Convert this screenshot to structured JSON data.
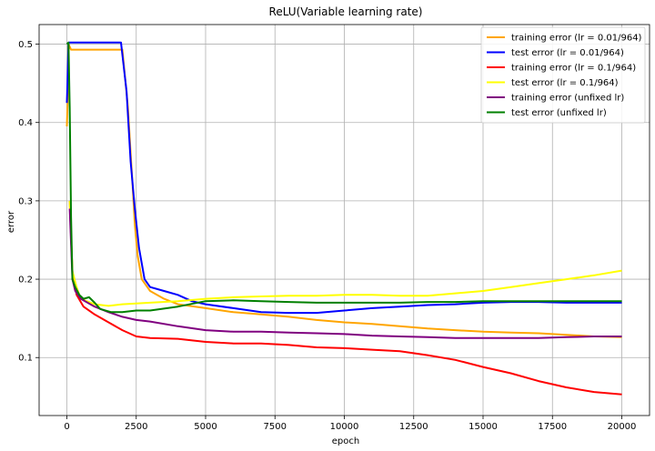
{
  "chart_data": {
    "type": "line",
    "title": "ReLU(Variable learning rate)",
    "xlabel": "epoch",
    "ylabel": "error",
    "xlim": [
      -1000,
      21000
    ],
    "ylim": [
      0.026,
      0.525
    ],
    "xticks": [
      0,
      2500,
      5000,
      7500,
      10000,
      12500,
      15000,
      17500,
      20000
    ],
    "yticks": [
      0.1,
      0.2,
      0.3,
      0.4,
      0.5
    ],
    "grid": true,
    "legend_position": "top-right",
    "series": [
      {
        "name": "training error (lr = 0.01/964)",
        "color": "#ffa500",
        "points": [
          [
            0,
            0.395
          ],
          [
            30,
            0.43
          ],
          [
            60,
            0.5
          ],
          [
            150,
            0.493
          ],
          [
            1000,
            0.493
          ],
          [
            2000,
            0.493
          ],
          [
            2200,
            0.42
          ],
          [
            2350,
            0.33
          ],
          [
            2450,
            0.27
          ],
          [
            2550,
            0.23
          ],
          [
            2700,
            0.2
          ],
          [
            3000,
            0.185
          ],
          [
            3500,
            0.175
          ],
          [
            4000,
            0.168
          ],
          [
            5000,
            0.163
          ],
          [
            6000,
            0.158
          ],
          [
            7000,
            0.155
          ],
          [
            8000,
            0.152
          ],
          [
            9000,
            0.148
          ],
          [
            10000,
            0.145
          ],
          [
            11000,
            0.143
          ],
          [
            12000,
            0.14
          ],
          [
            13000,
            0.137
          ],
          [
            14000,
            0.135
          ],
          [
            15000,
            0.133
          ],
          [
            16000,
            0.132
          ],
          [
            17000,
            0.131
          ],
          [
            18000,
            0.129
          ],
          [
            19000,
            0.127
          ],
          [
            20000,
            0.126
          ]
        ]
      },
      {
        "name": "test error (lr = 0.01/964)",
        "color": "#0000ff",
        "points": [
          [
            0,
            0.425
          ],
          [
            30,
            0.46
          ],
          [
            60,
            0.502
          ],
          [
            1000,
            0.502
          ],
          [
            1950,
            0.502
          ],
          [
            2150,
            0.44
          ],
          [
            2300,
            0.35
          ],
          [
            2450,
            0.29
          ],
          [
            2600,
            0.24
          ],
          [
            2800,
            0.2
          ],
          [
            3000,
            0.19
          ],
          [
            3500,
            0.185
          ],
          [
            4000,
            0.18
          ],
          [
            4500,
            0.172
          ],
          [
            5000,
            0.168
          ],
          [
            6000,
            0.163
          ],
          [
            7000,
            0.158
          ],
          [
            8000,
            0.157
          ],
          [
            9000,
            0.157
          ],
          [
            10000,
            0.16
          ],
          [
            11000,
            0.163
          ],
          [
            12000,
            0.165
          ],
          [
            13000,
            0.167
          ],
          [
            14000,
            0.168
          ],
          [
            15000,
            0.17
          ],
          [
            16000,
            0.171
          ],
          [
            17000,
            0.171
          ],
          [
            18000,
            0.17
          ],
          [
            19000,
            0.17
          ],
          [
            20000,
            0.17
          ]
        ]
      },
      {
        "name": "training error (lr = 0.1/964)",
        "color": "#ff0000",
        "points": [
          [
            100,
            0.3
          ],
          [
            200,
            0.21
          ],
          [
            350,
            0.18
          ],
          [
            600,
            0.165
          ],
          [
            1000,
            0.155
          ],
          [
            1500,
            0.145
          ],
          [
            2000,
            0.135
          ],
          [
            2500,
            0.127
          ],
          [
            3000,
            0.125
          ],
          [
            4000,
            0.124
          ],
          [
            5000,
            0.12
          ],
          [
            6000,
            0.118
          ],
          [
            7000,
            0.118
          ],
          [
            8000,
            0.116
          ],
          [
            9000,
            0.113
          ],
          [
            10000,
            0.112
          ],
          [
            11000,
            0.11
          ],
          [
            12000,
            0.108
          ],
          [
            13000,
            0.103
          ],
          [
            14000,
            0.097
          ],
          [
            15000,
            0.088
          ],
          [
            16000,
            0.08
          ],
          [
            17000,
            0.07
          ],
          [
            18000,
            0.062
          ],
          [
            19000,
            0.056
          ],
          [
            20000,
            0.053
          ]
        ]
      },
      {
        "name": "test error (lr = 0.1/964)",
        "color": "#ffff00",
        "points": [
          [
            100,
            0.3
          ],
          [
            200,
            0.21
          ],
          [
            350,
            0.19
          ],
          [
            500,
            0.175
          ],
          [
            1000,
            0.168
          ],
          [
            1500,
            0.166
          ],
          [
            2000,
            0.168
          ],
          [
            3000,
            0.17
          ],
          [
            4000,
            0.172
          ],
          [
            5000,
            0.175
          ],
          [
            6000,
            0.177
          ],
          [
            7000,
            0.178
          ],
          [
            8000,
            0.179
          ],
          [
            9000,
            0.179
          ],
          [
            10000,
            0.18
          ],
          [
            11000,
            0.18
          ],
          [
            12000,
            0.179
          ],
          [
            13000,
            0.179
          ],
          [
            14000,
            0.182
          ],
          [
            15000,
            0.185
          ],
          [
            16000,
            0.19
          ],
          [
            17000,
            0.195
          ],
          [
            18000,
            0.2
          ],
          [
            19000,
            0.205
          ],
          [
            20000,
            0.211
          ]
        ]
      },
      {
        "name": "training error (unfixed lr)",
        "color": "#800080",
        "points": [
          [
            100,
            0.29
          ],
          [
            200,
            0.2
          ],
          [
            300,
            0.185
          ],
          [
            500,
            0.175
          ],
          [
            1000,
            0.165
          ],
          [
            1500,
            0.158
          ],
          [
            2000,
            0.152
          ],
          [
            2500,
            0.148
          ],
          [
            3000,
            0.146
          ],
          [
            4000,
            0.14
          ],
          [
            5000,
            0.135
          ],
          [
            6000,
            0.133
          ],
          [
            7000,
            0.133
          ],
          [
            8000,
            0.132
          ],
          [
            9000,
            0.131
          ],
          [
            10000,
            0.13
          ],
          [
            11000,
            0.128
          ],
          [
            12000,
            0.127
          ],
          [
            13000,
            0.126
          ],
          [
            14000,
            0.125
          ],
          [
            15000,
            0.125
          ],
          [
            16000,
            0.125
          ],
          [
            17000,
            0.125
          ],
          [
            18000,
            0.126
          ],
          [
            19000,
            0.127
          ],
          [
            20000,
            0.127
          ]
        ]
      },
      {
        "name": "test error (unfixed lr)",
        "color": "#008000",
        "points": [
          [
            0,
            0.5
          ],
          [
            60,
            0.502
          ],
          [
            100,
            0.42
          ],
          [
            150,
            0.28
          ],
          [
            200,
            0.2
          ],
          [
            300,
            0.19
          ],
          [
            450,
            0.18
          ],
          [
            600,
            0.175
          ],
          [
            800,
            0.177
          ],
          [
            1000,
            0.17
          ],
          [
            1200,
            0.162
          ],
          [
            1600,
            0.158
          ],
          [
            2000,
            0.158
          ],
          [
            2500,
            0.16
          ],
          [
            3000,
            0.16
          ],
          [
            4000,
            0.165
          ],
          [
            5000,
            0.172
          ],
          [
            6000,
            0.173
          ],
          [
            7000,
            0.172
          ],
          [
            8000,
            0.171
          ],
          [
            9000,
            0.17
          ],
          [
            10000,
            0.17
          ],
          [
            11000,
            0.17
          ],
          [
            12000,
            0.17
          ],
          [
            13000,
            0.171
          ],
          [
            14000,
            0.171
          ],
          [
            15000,
            0.172
          ],
          [
            16000,
            0.172
          ],
          [
            17000,
            0.172
          ],
          [
            18000,
            0.172
          ],
          [
            19000,
            0.172
          ],
          [
            20000,
            0.172
          ]
        ]
      }
    ]
  }
}
